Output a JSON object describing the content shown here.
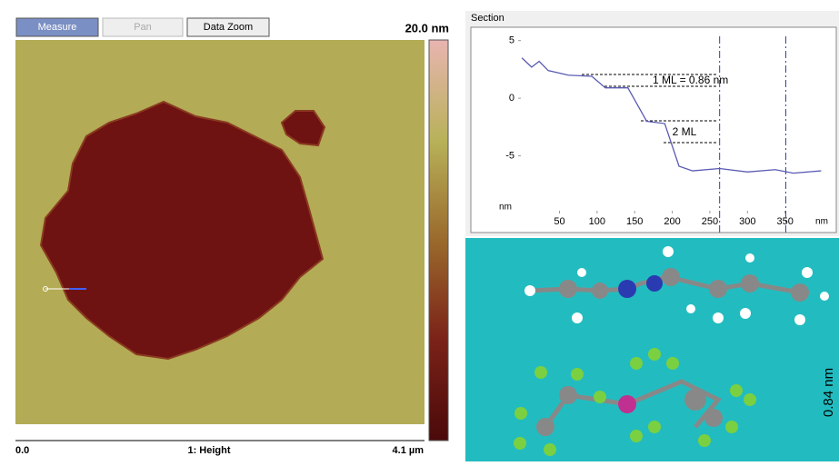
{
  "toolbar": {
    "buttons": [
      "Measure",
      "Pan",
      "Data Zoom"
    ]
  },
  "image": {
    "scale_max": "20.0 nm",
    "x_start": "0.0",
    "channel": "1: Height",
    "x_end": "4.1 µm"
  },
  "chart_data": {
    "type": "line",
    "title": "Section",
    "x_label": "nm",
    "y_label": "nm",
    "x": [
      0,
      13,
      23,
      35,
      62,
      93,
      111,
      141,
      166,
      190,
      209,
      227,
      263,
      300,
      337,
      361,
      398
    ],
    "values": [
      3.5,
      2.7,
      3.2,
      2.4,
      2.0,
      1.9,
      0.9,
      0.9,
      -2.0,
      -2.2,
      -5.9,
      -6.3,
      -6.1,
      -6.4,
      -6.2,
      -6.5,
      -6.3
    ],
    "color": "#5a5ab4",
    "xlim": [
      -5,
      400
    ],
    "ylim": [
      -10,
      6
    ],
    "xticks": [
      50,
      100,
      150,
      200,
      250,
      300,
      350
    ],
    "yticks": [
      5,
      0,
      -5
    ],
    "cursors": [
      263,
      351
    ],
    "annotations": [
      "1 ML = 0.86 nm",
      "2 ML"
    ]
  },
  "molecule": {
    "label": "0.84 nm"
  }
}
